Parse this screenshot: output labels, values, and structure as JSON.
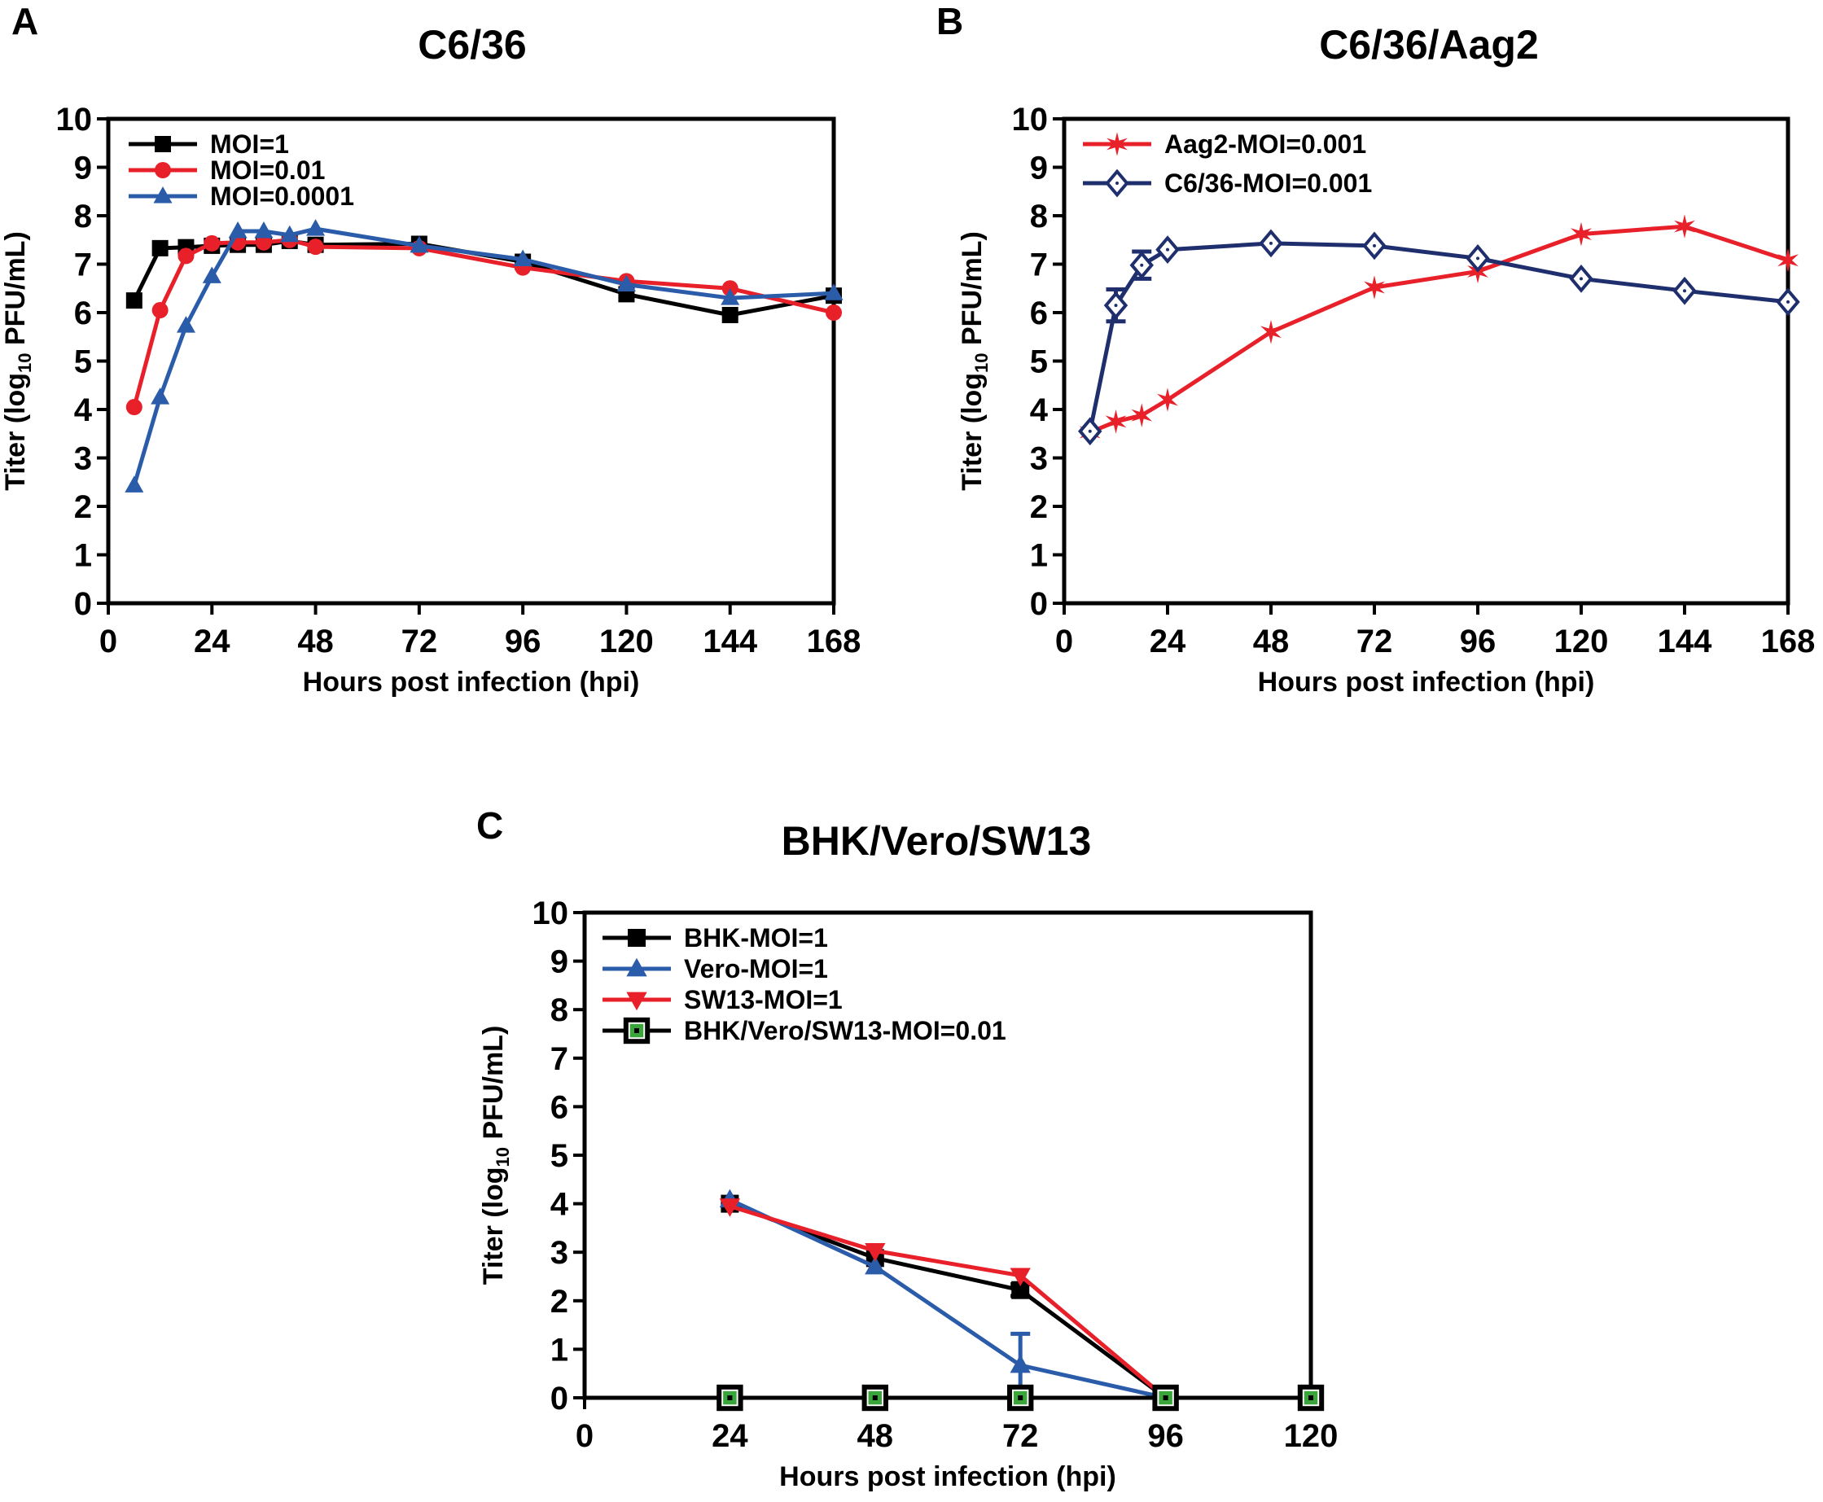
{
  "chart_data": [
    {
      "id": "A",
      "panel_letter": "A",
      "type": "line",
      "title": "C6/36",
      "xlabel": "Hours post infection (hpi)",
      "ylabel": {
        "pre": "Titer (log",
        "sub": "10",
        "post": " PFU/mL)"
      },
      "xlim": [
        0,
        168
      ],
      "ylim": [
        0,
        10
      ],
      "xticks": [
        0,
        24,
        48,
        72,
        96,
        120,
        144,
        168
      ],
      "yticks": [
        0,
        1,
        2,
        3,
        4,
        5,
        6,
        7,
        8,
        9,
        10
      ],
      "legend_position": "top-left",
      "series": [
        {
          "name": "MOI=1",
          "color": "#000000",
          "marker": "square",
          "x": [
            6,
            12,
            18,
            24,
            30,
            36,
            42,
            48,
            72,
            96,
            120,
            144,
            168
          ],
          "y": [
            6.25,
            7.33,
            7.35,
            7.38,
            7.4,
            7.4,
            7.48,
            7.4,
            7.42,
            7.05,
            6.38,
            5.95,
            6.35
          ]
        },
        {
          "name": "MOI=0.01",
          "color": "#e8202a",
          "marker": "circle",
          "x": [
            6,
            12,
            18,
            24,
            30,
            36,
            42,
            48,
            72,
            96,
            120,
            144,
            168
          ],
          "y": [
            4.05,
            6.05,
            7.17,
            7.43,
            7.45,
            7.45,
            7.5,
            7.36,
            7.33,
            6.93,
            6.65,
            6.5,
            6.0
          ]
        },
        {
          "name": "MOI=0.0001",
          "color": "#2a5caa",
          "marker": "triangle",
          "x": [
            6,
            12,
            18,
            24,
            30,
            36,
            42,
            48,
            72,
            96,
            120,
            144,
            168
          ],
          "y": [
            2.43,
            4.25,
            5.73,
            6.75,
            7.68,
            7.68,
            7.6,
            7.73,
            7.38,
            7.1,
            6.58,
            6.3,
            6.4
          ]
        }
      ]
    },
    {
      "id": "B",
      "panel_letter": "B",
      "type": "line",
      "title": "C6/36/Aag2",
      "xlabel": "Hours post infection (hpi)",
      "ylabel": {
        "pre": "Titer (log",
        "sub": "10",
        "post": " PFU/mL)"
      },
      "xlim": [
        0,
        168
      ],
      "ylim": [
        0,
        10
      ],
      "xticks": [
        0,
        24,
        48,
        72,
        96,
        120,
        144,
        168
      ],
      "yticks": [
        0,
        1,
        2,
        3,
        4,
        5,
        6,
        7,
        8,
        9,
        10
      ],
      "legend_position": "top-left",
      "series": [
        {
          "name": "Aag2-MOI=0.001",
          "color": "#e8202a",
          "marker": "star",
          "x": [
            6,
            12,
            18,
            24,
            48,
            72,
            96,
            120,
            144,
            168
          ],
          "y": [
            3.53,
            3.75,
            3.88,
            4.2,
            5.6,
            6.52,
            6.85,
            7.62,
            7.78,
            7.08
          ],
          "err": [
            0,
            0,
            0,
            0,
            0,
            0,
            0,
            0,
            0,
            0
          ]
        },
        {
          "name": "C6/36-MOI=0.001",
          "color": "#1f2f6e",
          "marker": "diamond",
          "x": [
            6,
            12,
            18,
            24,
            48,
            72,
            96,
            120,
            144,
            168
          ],
          "y": [
            3.55,
            6.15,
            6.98,
            7.3,
            7.43,
            7.38,
            7.12,
            6.7,
            6.45,
            6.22
          ],
          "err": [
            0,
            0.33,
            0.28,
            0,
            0,
            0,
            0,
            0,
            0,
            0
          ]
        }
      ]
    },
    {
      "id": "C",
      "panel_letter": "C",
      "type": "line",
      "title": "BHK/Vero/SW13",
      "xlabel": "Hours post infection (hpi)",
      "ylabel": {
        "pre": "Titer (log",
        "sub": "10",
        "post": " PFU/mL)"
      },
      "xlim": [
        0,
        120
      ],
      "ylim": [
        0,
        10
      ],
      "xticks": [
        0,
        24,
        48,
        72,
        96,
        120
      ],
      "yticks": [
        0,
        1,
        2,
        3,
        4,
        5,
        6,
        7,
        8,
        9,
        10
      ],
      "legend_position": "top-left",
      "series": [
        {
          "name": "BHK-MOI=1",
          "color": "#000000",
          "marker": "square",
          "x": [
            24,
            48,
            72,
            96
          ],
          "y": [
            4.0,
            2.88,
            2.22,
            0.0
          ],
          "err": [
            0,
            0,
            0.12,
            0
          ]
        },
        {
          "name": "Vero-MOI=1",
          "color": "#2a5caa",
          "marker": "triangle",
          "x": [
            24,
            48,
            72,
            96
          ],
          "y": [
            4.08,
            2.7,
            0.67,
            0.0
          ],
          "err": [
            0,
            0,
            0.65,
            0
          ]
        },
        {
          "name": "SW13-MOI=1",
          "color": "#e8202a",
          "marker": "triangle-down",
          "x": [
            24,
            48,
            72,
            96
          ],
          "y": [
            3.95,
            3.03,
            2.52,
            0.0
          ],
          "err": [
            0,
            0,
            0,
            0
          ]
        },
        {
          "name": "BHK/Vero/SW13-MOI=0.01",
          "color": "#000000",
          "fill": "#3aa53a",
          "marker": "dotsquare",
          "x": [
            24,
            48,
            72,
            96,
            120
          ],
          "y": [
            0,
            0,
            0,
            0,
            0
          ],
          "err": [
            0,
            0,
            0,
            0,
            0
          ]
        }
      ]
    }
  ]
}
